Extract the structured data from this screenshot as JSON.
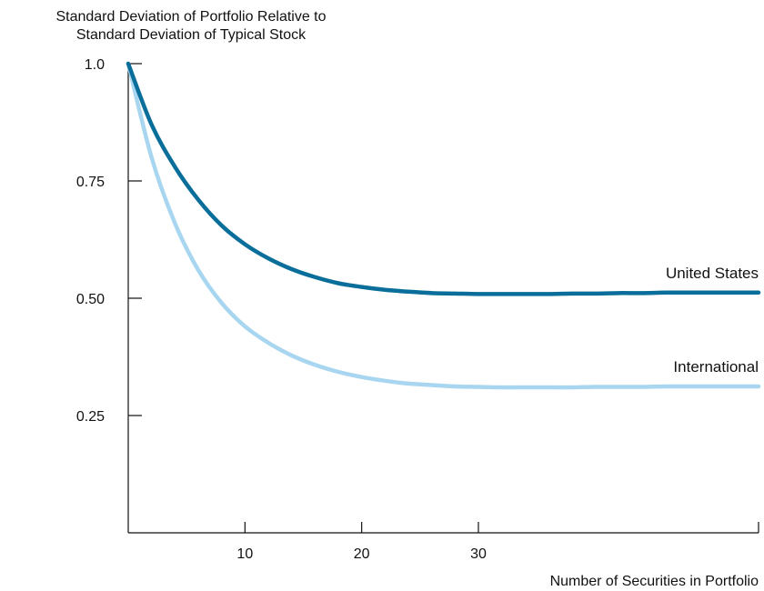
{
  "chart_data": {
    "type": "line",
    "ylabel_lines": [
      "Standard Deviation of Portfolio Relative to",
      "Standard Deviation of Typical Stock"
    ],
    "xlabel": "Number of Securities in Portfolio",
    "xlim": [
      0,
      54
    ],
    "ylim": [
      0,
      1.0
    ],
    "yticks": [
      {
        "value": 0.25,
        "label": "0.25"
      },
      {
        "value": 0.5,
        "label": "0.50"
      },
      {
        "value": 0.75,
        "label": "0.75"
      },
      {
        "value": 1.0,
        "label": "1.0"
      }
    ],
    "xticks": [
      {
        "value": 10,
        "label": "10"
      },
      {
        "value": 20,
        "label": "20"
      },
      {
        "value": 30,
        "label": "30"
      }
    ],
    "grid": false,
    "series": [
      {
        "name": "United States",
        "color": "#0a6e9a",
        "x": [
          0,
          2,
          4,
          6,
          8,
          10,
          12,
          14,
          16,
          18,
          20,
          22,
          24,
          26,
          28,
          30,
          32,
          34,
          36,
          38,
          40,
          42,
          44,
          46,
          48,
          50,
          52,
          54
        ],
        "y": [
          1.0,
          0.87,
          0.78,
          0.71,
          0.655,
          0.615,
          0.585,
          0.562,
          0.545,
          0.532,
          0.524,
          0.518,
          0.514,
          0.511,
          0.51,
          0.509,
          0.509,
          0.509,
          0.509,
          0.51,
          0.51,
          0.511,
          0.511,
          0.512,
          0.512,
          0.512,
          0.512,
          0.512
        ]
      },
      {
        "name": "International",
        "color": "#a8d6f0",
        "x": [
          0,
          2,
          4,
          6,
          8,
          10,
          12,
          14,
          16,
          18,
          20,
          22,
          24,
          26,
          28,
          30,
          32,
          34,
          36,
          38,
          40,
          42,
          44,
          46,
          48,
          50,
          52,
          54
        ],
        "y": [
          1.0,
          0.8,
          0.66,
          0.56,
          0.49,
          0.44,
          0.405,
          0.378,
          0.358,
          0.343,
          0.332,
          0.324,
          0.318,
          0.315,
          0.312,
          0.311,
          0.31,
          0.31,
          0.31,
          0.31,
          0.311,
          0.311,
          0.311,
          0.312,
          0.312,
          0.312,
          0.312,
          0.312
        ]
      }
    ]
  }
}
